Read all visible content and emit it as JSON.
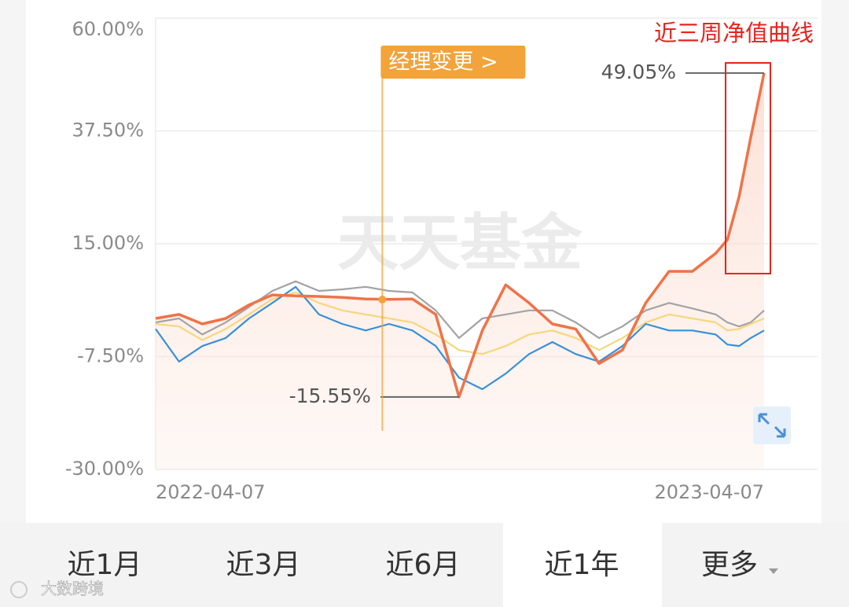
{
  "chart_data": {
    "type": "line",
    "x": [
      "2022-04-07",
      "2022-04-21",
      "2022-05-05",
      "2022-05-19",
      "2022-06-02",
      "2022-06-16",
      "2022-06-30",
      "2022-07-14",
      "2022-07-28",
      "2022-08-11",
      "2022-08-25",
      "2022-09-08",
      "2022-09-22",
      "2022-10-06",
      "2022-10-20",
      "2022-11-03",
      "2022-11-17",
      "2022-12-01",
      "2022-12-15",
      "2022-12-29",
      "2023-01-12",
      "2023-01-26",
      "2023-02-09",
      "2023-02-23",
      "2023-03-09",
      "2023-03-16",
      "2023-03-23",
      "2023-03-30",
      "2023-04-07"
    ],
    "series": [
      {
        "color": "#a3a3a3",
        "values": [
          -0.7,
          0.1,
          -3.1,
          -0.7,
          2.4,
          5.6,
          7.5,
          5.6,
          5.9,
          6.4,
          5.6,
          5.3,
          1.7,
          -3.8,
          0.1,
          0.9,
          1.7,
          1.7,
          -0.7,
          -3.8,
          -1.5,
          1.7,
          3.2,
          2.1,
          0.9,
          -0.7,
          -1.5,
          -0.7,
          1.7
        ]
      },
      {
        "color": "#f6d77c",
        "values": [
          -1.0,
          -1.5,
          -4.2,
          -2.0,
          0.9,
          4.0,
          5.3,
          3.2,
          1.7,
          0.9,
          0.1,
          -0.7,
          -3.1,
          -6.2,
          -7.0,
          -5.4,
          -3.1,
          -2.3,
          -3.8,
          -6.2,
          -3.8,
          -0.7,
          0.9,
          0.1,
          -0.7,
          -2.3,
          -2.0,
          -1.0,
          0.1
        ]
      },
      {
        "color": "#3a8fd6",
        "values": [
          -2.0,
          -8.5,
          -5.4,
          -3.8,
          0.1,
          3.2,
          6.4,
          0.9,
          -1.0,
          -2.3,
          -1.0,
          -2.3,
          -5.4,
          -11.7,
          -14.0,
          -10.9,
          -7.0,
          -4.6,
          -7.0,
          -8.5,
          -5.4,
          -1.0,
          -2.3,
          -2.3,
          -3.1,
          -5.1,
          -5.4,
          -3.8,
          -2.3
        ]
      },
      {
        "color": "#ef7348",
        "values": [
          0.1,
          0.9,
          -1.0,
          0.1,
          2.8,
          4.8,
          4.6,
          4.5,
          4.3,
          4.0,
          3.9,
          4.0,
          0.9,
          -15.55,
          -2.3,
          6.8,
          3.2,
          -1.0,
          -2.0,
          -8.9,
          -6.2,
          3.2,
          9.5,
          9.5,
          13.1,
          15.8,
          24.4,
          36.2,
          49.05
        ],
        "value_labels": [
          null,
          null,
          null,
          null,
          null,
          null,
          null,
          null,
          null,
          null,
          null,
          null,
          null,
          "-15.55%",
          null,
          null,
          null,
          null,
          null,
          null,
          null,
          null,
          null,
          null,
          null,
          null,
          null,
          null,
          "49.05%"
        ]
      }
    ],
    "ylim": [
      -30,
      60
    ],
    "yticks": [
      {
        "value": 60,
        "label": "60.00%"
      },
      {
        "value": 37.5,
        "label": "37.50%"
      },
      {
        "value": 15,
        "label": "15.00%"
      },
      {
        "value": -7.5,
        "label": "-7.50%"
      },
      {
        "value": -30,
        "label": "-30.00%"
      }
    ],
    "xlim": [
      "2022-04-07",
      "2023-04-07"
    ],
    "xticks": [
      "2022-04-07",
      "2023-04-07"
    ],
    "grid": true,
    "annotations": [
      {
        "label": "经理变更 >",
        "x": "2022-08-21",
        "color": "#f2a33a"
      },
      {
        "label": "近三周净值曲线",
        "color": "#e8231d"
      }
    ],
    "watermark": "天天基金"
  },
  "tabs": [
    {
      "label": "近1月"
    },
    {
      "label": "近3月"
    },
    {
      "label": "近6月"
    },
    {
      "label": "近1年",
      "selected": true
    },
    {
      "label": "更多"
    }
  ],
  "source_watermark": "大数跨境"
}
